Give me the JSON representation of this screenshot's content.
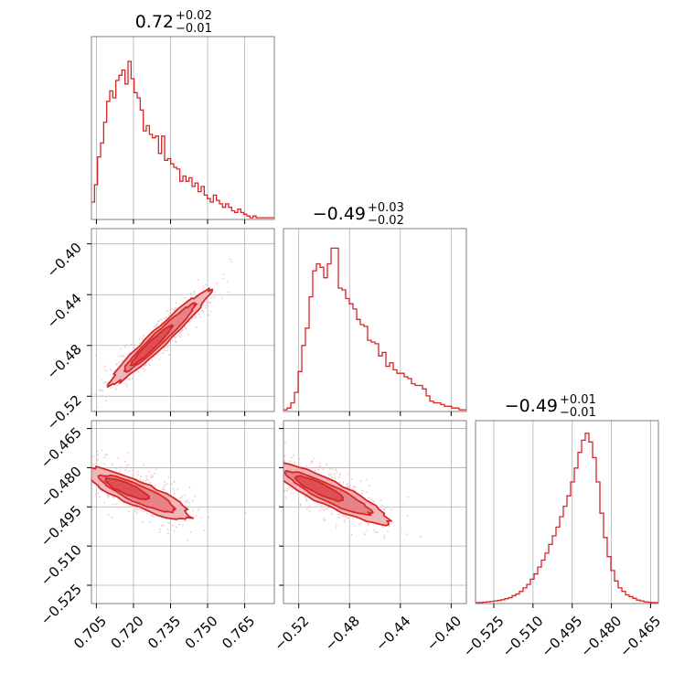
{
  "colors": {
    "series": "#d62728",
    "fill_inner": "#e36d73",
    "fill_outer": "#f0b6b9",
    "scatter": "#f3c4c6",
    "grid": "#b0b0b0",
    "axes": "#7f7f7f"
  },
  "chart_data": {
    "type": "corner",
    "grid": true,
    "parameters": [
      {
        "range": [
          0.703,
          0.777
        ],
        "ticks": [
          0.705,
          0.72,
          0.735,
          0.75,
          0.765
        ],
        "tick_labels": [
          "0.705",
          "0.720",
          "0.735",
          "0.750",
          "0.765"
        ]
      },
      {
        "range": [
          -0.532,
          -0.388
        ],
        "ticks": [
          -0.52,
          -0.48,
          -0.44,
          -0.4
        ],
        "tick_labels": [
          "−0.52",
          "−0.48",
          "−0.44",
          "−0.40"
        ]
      },
      {
        "range": [
          -0.532,
          -0.462
        ],
        "ticks": [
          -0.525,
          -0.51,
          -0.495,
          -0.48,
          -0.465
        ],
        "tick_labels": [
          "−0.525",
          "−0.510",
          "−0.495",
          "−0.480",
          "−0.465"
        ]
      }
    ],
    "titles": [
      {
        "value": "0.72",
        "upper": "+0.02",
        "lower": "−0.01"
      },
      {
        "value": "−0.49",
        "upper": "+0.03",
        "lower": "−0.02"
      },
      {
        "value": "−0.49",
        "upper": "+0.01",
        "lower": "−0.01"
      }
    ],
    "histograms": [
      {
        "param": 0,
        "heights": [
          0.1,
          0.2,
          0.36,
          0.44,
          0.56,
          0.68,
          0.74,
          0.7,
          0.8,
          0.83,
          0.86,
          0.78,
          0.91,
          0.81,
          0.73,
          0.7,
          0.63,
          0.51,
          0.54,
          0.49,
          0.47,
          0.48,
          0.38,
          0.48,
          0.34,
          0.35,
          0.32,
          0.3,
          0.29,
          0.22,
          0.25,
          0.22,
          0.24,
          0.19,
          0.21,
          0.16,
          0.19,
          0.14,
          0.12,
          0.1,
          0.14,
          0.11,
          0.09,
          0.07,
          0.09,
          0.07,
          0.05,
          0.04,
          0.06,
          0.04,
          0.03,
          0.02,
          0.01,
          0.02,
          0.01,
          0.01,
          0.01,
          0.01,
          0.01,
          0.01
        ]
      },
      {
        "param": 1,
        "heights": [
          0.01,
          0.02,
          0.05,
          0.11,
          0.23,
          0.38,
          0.48,
          0.66,
          0.81,
          0.85,
          0.83,
          0.77,
          0.85,
          0.94,
          0.94,
          0.71,
          0.7,
          0.65,
          0.62,
          0.59,
          0.53,
          0.5,
          0.49,
          0.41,
          0.4,
          0.39,
          0.32,
          0.34,
          0.26,
          0.28,
          0.24,
          0.22,
          0.22,
          0.2,
          0.19,
          0.16,
          0.15,
          0.15,
          0.13,
          0.09,
          0.06,
          0.05,
          0.05,
          0.04,
          0.03,
          0.03,
          0.02,
          0.02,
          0.01,
          0.01
        ]
      },
      {
        "param": 2,
        "heights": [
          0.005,
          0.006,
          0.008,
          0.01,
          0.012,
          0.015,
          0.018,
          0.022,
          0.028,
          0.034,
          0.045,
          0.055,
          0.07,
          0.09,
          0.11,
          0.14,
          0.17,
          0.21,
          0.25,
          0.29,
          0.34,
          0.39,
          0.44,
          0.5,
          0.56,
          0.62,
          0.7,
          0.78,
          0.87,
          0.94,
          0.98,
          0.93,
          0.84,
          0.7,
          0.52,
          0.38,
          0.27,
          0.19,
          0.13,
          0.09,
          0.07,
          0.05,
          0.04,
          0.03,
          0.02,
          0.015,
          0.01,
          0.008,
          0.006,
          0.005
        ]
      }
    ],
    "pairs": [
      {
        "x_param": 0,
        "y_param": 1
      },
      {
        "x_param": 0,
        "y_param": 2
      },
      {
        "x_param": 1,
        "y_param": 2
      }
    ]
  }
}
